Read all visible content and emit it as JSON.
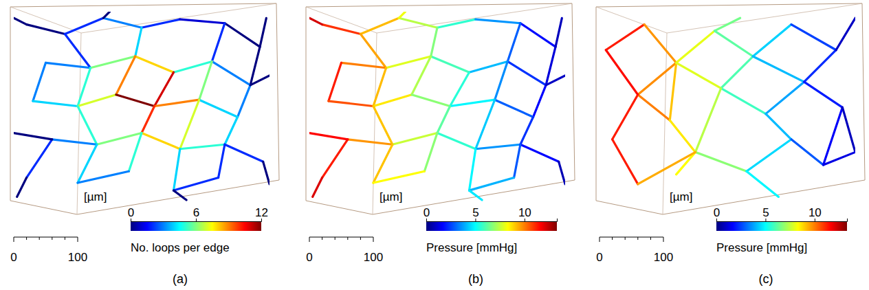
{
  "chart_data": [
    {
      "type": "network",
      "title": "(a)",
      "xlim": [
        0,
        400
      ],
      "ylim": [
        0,
        310
      ],
      "nodes": {
        "x": [
          20,
          80,
          140,
          200,
          260,
          330,
          385,
          50,
          120,
          190,
          250,
          310,
          370,
          30,
          100,
          160,
          220,
          290,
          350,
          60,
          130,
          200,
          260,
          330,
          390,
          20,
          100,
          180,
          250,
          320,
          0,
          395,
          400,
          0,
          400,
          5,
          270,
          150
        ],
        "y": [
          290,
          275,
          300,
          285,
          298,
          292,
          255,
          230,
          222,
          240,
          215,
          232,
          195,
          170,
          162,
          180,
          162,
          172,
          145,
          110,
          102,
          120,
          95,
          102,
          75,
          50,
          42,
          60,
          30,
          50,
          300,
          300,
          210,
          120,
          40,
          20,
          15,
          310
        ]
      },
      "edges": {
        "source": [
          0,
          1,
          2,
          3,
          4,
          5,
          1,
          3,
          5,
          6,
          7,
          8,
          9,
          10,
          11,
          7,
          8,
          9,
          10,
          11,
          12,
          13,
          14,
          15,
          16,
          17,
          14,
          16,
          17,
          18,
          19,
          20,
          21,
          22,
          23,
          19,
          20,
          21,
          22,
          23,
          26,
          28,
          0,
          6,
          12,
          19,
          24,
          25,
          28,
          2
        ],
        "target": [
          1,
          2,
          3,
          4,
          5,
          6,
          8,
          9,
          11,
          12,
          8,
          9,
          10,
          11,
          12,
          13,
          14,
          15,
          16,
          17,
          18,
          14,
          15,
          16,
          17,
          18,
          20,
          21,
          22,
          23,
          20,
          21,
          22,
          23,
          24,
          25,
          26,
          27,
          28,
          29,
          27,
          29,
          30,
          31,
          32,
          33,
          34,
          35,
          36,
          37
        ],
        "values": [
          0,
          2,
          3,
          2,
          1,
          0,
          2,
          4,
          2,
          0,
          3,
          6,
          8,
          5,
          3,
          3,
          5,
          9,
          11,
          6,
          3,
          4,
          7,
          12,
          9,
          4,
          5,
          10,
          7,
          4,
          3,
          6,
          8,
          5,
          2,
          2,
          4,
          5,
          4,
          2,
          3,
          2,
          0,
          0,
          0,
          0,
          0,
          0,
          0,
          0
        ]
      },
      "colorbar": {
        "label": "No. loops per edge",
        "range": [
          0,
          12
        ],
        "ticks": [
          0,
          6,
          12
        ]
      },
      "scale_bar": {
        "label": "[µm]",
        "ticks": [
          0,
          100
        ],
        "minor_ticks": [
          20,
          40,
          60,
          80
        ]
      }
    },
    {
      "type": "network",
      "title": "(b)",
      "xlim": [
        0,
        400
      ],
      "ylim": [
        0,
        310
      ],
      "nodes": {
        "x": [
          20,
          80,
          140,
          200,
          260,
          330,
          385,
          50,
          120,
          190,
          250,
          310,
          370,
          30,
          100,
          160,
          220,
          290,
          350,
          60,
          130,
          200,
          260,
          330,
          390,
          20,
          100,
          180,
          250,
          320,
          0,
          395,
          400,
          0,
          400,
          5,
          270,
          150
        ],
        "y": [
          290,
          275,
          300,
          285,
          298,
          292,
          255,
          230,
          222,
          240,
          215,
          232,
          195,
          170,
          162,
          180,
          162,
          172,
          145,
          110,
          102,
          120,
          95,
          102,
          75,
          50,
          42,
          60,
          30,
          50,
          300,
          300,
          210,
          120,
          40,
          20,
          15,
          310
        ]
      },
      "edges": {
        "source": [
          0,
          1,
          2,
          3,
          4,
          5,
          1,
          3,
          5,
          6,
          7,
          8,
          9,
          10,
          11,
          7,
          8,
          9,
          10,
          11,
          12,
          13,
          14,
          15,
          16,
          17,
          14,
          16,
          17,
          18,
          19,
          20,
          21,
          22,
          23,
          19,
          20,
          21,
          22,
          23,
          26,
          28,
          0,
          6,
          12,
          19,
          24,
          25,
          28,
          2
        ],
        "target": [
          1,
          2,
          3,
          4,
          5,
          6,
          8,
          9,
          11,
          12,
          8,
          9,
          10,
          11,
          12,
          13,
          14,
          15,
          16,
          17,
          18,
          14,
          15,
          16,
          17,
          18,
          20,
          21,
          22,
          23,
          20,
          21,
          22,
          23,
          24,
          25,
          26,
          27,
          28,
          29,
          27,
          29,
          30,
          31,
          32,
          33,
          34,
          35,
          36,
          37
        ],
        "values": [
          11,
          9.2,
          7.4,
          5.6,
          3.6,
          1.8,
          9.5,
          6.7,
          2.9,
          1.2,
          10,
          7.9,
          5.9,
          4.1,
          2.3,
          11.3,
          9.2,
          7.3,
          5.5,
          3.5,
          1.7,
          10.6,
          8.6,
          6.8,
          4.9,
          2.9,
          9.1,
          6.2,
          4.3,
          2.3,
          9.7,
          7.6,
          5.6,
          3.6,
          1.7,
          11.3,
          9.1,
          6.8,
          4.9,
          2.8,
          8.3,
          4,
          12.2,
          0.8,
          0.9,
          11.6,
          0.7,
          12.1,
          4.7,
          8.1
        ]
      },
      "colorbar": {
        "label": "Pressure [mmHg]",
        "range": [
          0,
          13.3
        ],
        "ticks": [
          0,
          5,
          10
        ]
      },
      "scale_bar": {
        "label": "[µm]",
        "ticks": [
          0,
          100
        ],
        "minor_ticks": [
          20,
          40,
          60,
          80
        ]
      }
    },
    {
      "type": "network",
      "title": "(c)",
      "xlim": [
        0,
        400
      ],
      "ylim": [
        0,
        310
      ],
      "nodes": {
        "x": [
          10,
          70,
          120,
          60,
          20,
          110,
          180,
          190,
          150,
          60,
          240,
          260,
          230,
          300,
          320,
          300,
          370,
          380,
          350,
          280,
          400,
          400,
          120,
          220
        ],
        "y": [
          250,
          290,
          230,
          180,
          110,
          140,
          280,
          190,
          90,
          40,
          240,
          150,
          60,
          290,
          200,
          110,
          250,
          160,
          70,
          20,
          300,
          90,
          55,
          300
        ]
      },
      "edges": {
        "source": [
          0,
          1,
          2,
          3,
          3,
          2,
          2,
          2,
          5,
          4,
          6,
          6,
          7,
          7,
          7,
          8,
          8,
          10,
          10,
          11,
          11,
          12,
          12,
          13,
          14,
          14,
          15,
          17,
          16,
          17,
          18,
          0,
          9
        ],
        "target": [
          1,
          2,
          3,
          4,
          5,
          5,
          6,
          7,
          8,
          9,
          23,
          10,
          10,
          11,
          8,
          12,
          22,
          13,
          14,
          14,
          15,
          15,
          19,
          16,
          16,
          17,
          18,
          18,
          20,
          21,
          21,
          3,
          8
        ],
        "values": [
          11.3,
          9.7,
          9.8,
          11.3,
          10,
          9.1,
          8,
          7.9,
          8.6,
          11.3,
          6.5,
          6.2,
          6,
          5.8,
          7.4,
          6.8,
          8.3,
          4.4,
          4.1,
          3.8,
          4.1,
          4.5,
          4.9,
          2.5,
          2.2,
          2,
          2.8,
          1.6,
          0.9,
          0.8,
          1.3,
          11.5,
          9.4
        ]
      },
      "colorbar": {
        "label": "Pressure [mmHg]",
        "range": [
          0,
          13.3
        ],
        "ticks": [
          0,
          5,
          10
        ]
      },
      "scale_bar": {
        "label": "[µm]",
        "ticks": [
          0,
          100
        ],
        "minor_ticks": [
          20,
          40,
          60,
          80
        ]
      }
    }
  ]
}
